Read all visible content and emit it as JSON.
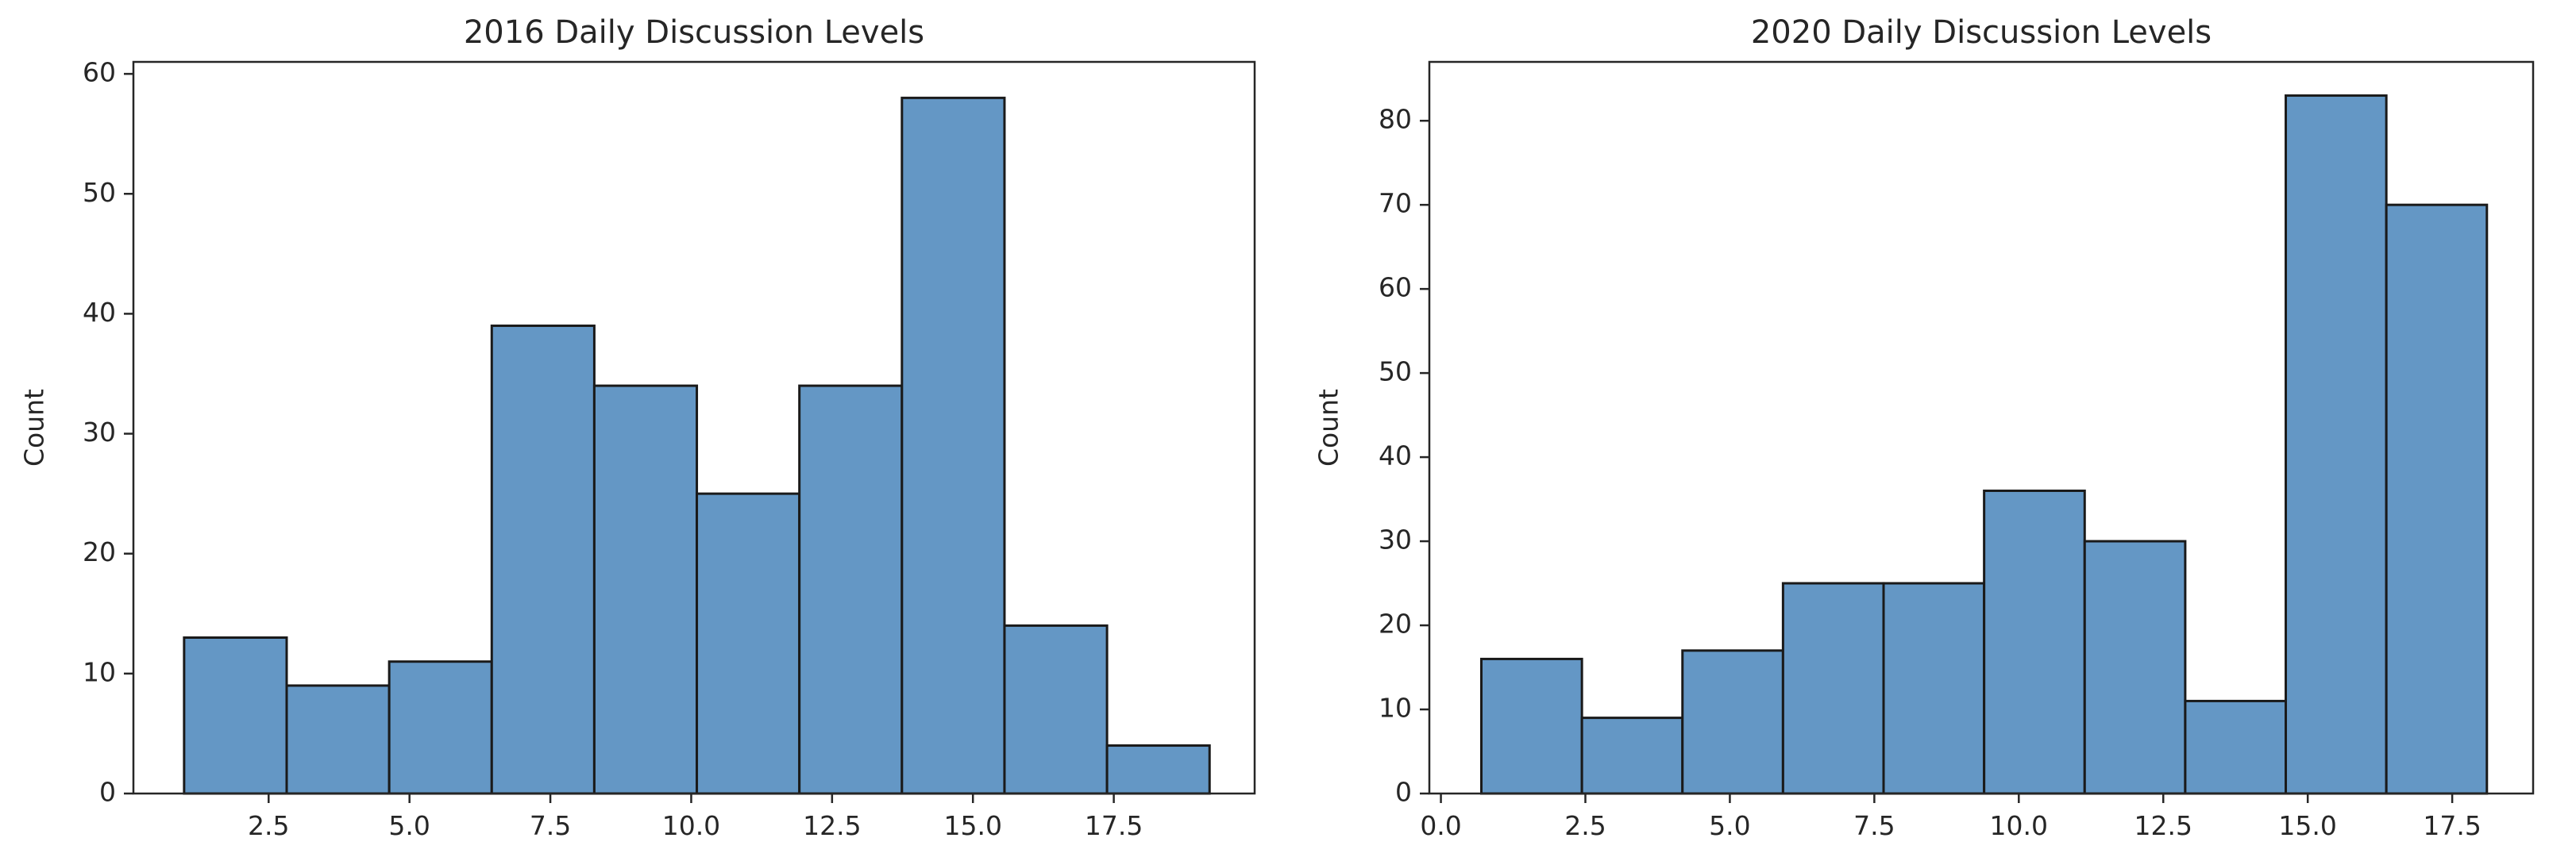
{
  "chart_data": [
    {
      "type": "bar",
      "title": "2016 Daily Discussion Levels",
      "xlabel": "",
      "ylabel": "Count",
      "xlim": [
        0.1,
        20.0
      ],
      "ylim": [
        0,
        61
      ],
      "xticks": [
        2.5,
        5.0,
        7.5,
        10.0,
        12.5,
        15.0,
        17.5
      ],
      "xtick_labels": [
        "2.5",
        "5.0",
        "7.5",
        "10.0",
        "12.5",
        "15.0",
        "17.5"
      ],
      "yticks": [
        0,
        10,
        20,
        30,
        40,
        50,
        60
      ],
      "ytick_labels": [
        "0",
        "10",
        "20",
        "30",
        "40",
        "50",
        "60"
      ],
      "bin_edges": [
        1.0,
        2.82,
        4.64,
        6.46,
        8.28,
        10.1,
        11.92,
        13.74,
        15.56,
        17.38,
        19.2
      ],
      "values": [
        13,
        9,
        11,
        39,
        34,
        25,
        34,
        58,
        14,
        4
      ],
      "bar_color": "#6497c5",
      "edge_color": "#1a1a1a",
      "grid": false
    },
    {
      "type": "bar",
      "title": "2020 Daily Discussion Levels",
      "xlabel": "",
      "ylabel": "Count",
      "xlim": [
        -0.2,
        18.9
      ],
      "ylim": [
        0,
        87
      ],
      "xticks": [
        0.0,
        2.5,
        5.0,
        7.5,
        10.0,
        12.5,
        15.0,
        17.5
      ],
      "xtick_labels": [
        "0.0",
        "2.5",
        "5.0",
        "7.5",
        "10.0",
        "12.5",
        "15.0",
        "17.5"
      ],
      "yticks": [
        0,
        10,
        20,
        30,
        40,
        50,
        60,
        70,
        80
      ],
      "ytick_labels": [
        "0",
        "10",
        "20",
        "30",
        "40",
        "50",
        "60",
        "70",
        "80"
      ],
      "bin_edges": [
        0.7,
        2.44,
        4.18,
        5.92,
        7.66,
        9.4,
        11.14,
        12.88,
        14.62,
        16.36,
        18.1
      ],
      "values": [
        16,
        9,
        17,
        25,
        25,
        36,
        30,
        11,
        83,
        70
      ],
      "bar_color": "#6497c5",
      "edge_color": "#1a1a1a",
      "grid": false
    }
  ]
}
